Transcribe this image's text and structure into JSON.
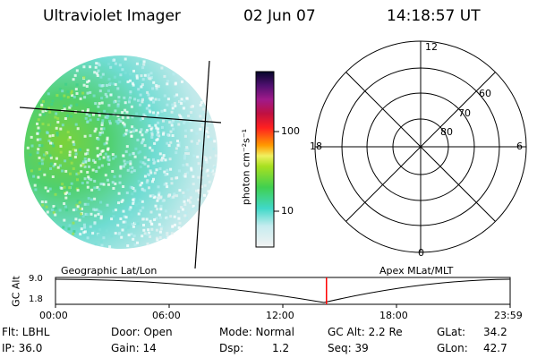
{
  "header": {
    "title": "Ultraviolet Imager",
    "date": "02 Jun 07",
    "time": "14:18:57 UT"
  },
  "colorbar": {
    "unit_label": "photon cm⁻²s⁻¹",
    "tick_100": "100",
    "tick_10": "10"
  },
  "polar": {
    "hour_top": "12",
    "hour_left": "18",
    "hour_right": "6",
    "hour_bottom": "0",
    "lat_60": "60",
    "lat_70": "70",
    "lat_80": "80"
  },
  "altitude_plot": {
    "geo_label": "Geographic Lat/Lon",
    "apex_label": "Apex MLat/MLT",
    "axis_label": "GC Alt",
    "y_top": "9.0",
    "y_bottom": "1.8",
    "time_ticks": [
      "00:00",
      "06:00",
      "12:00",
      "18:00",
      "23:59"
    ],
    "current_time_fraction": 0.596,
    "marker_color": "#ff0000"
  },
  "status": {
    "flt": "Flt: LBHL",
    "ip": "IP: 36.0",
    "door": "Door: Open",
    "gain": "Gain: 14",
    "mode": "Mode: Normal",
    "dsp_label": "Dsp:",
    "dsp_value": "1.2",
    "gc_alt": "GC Alt: 2.2 Re",
    "seq": "Seq: 39",
    "glat_label": "GLat:",
    "glat_value": "34.2",
    "glon_label": "GLon:",
    "glon_value": "42.7"
  }
}
